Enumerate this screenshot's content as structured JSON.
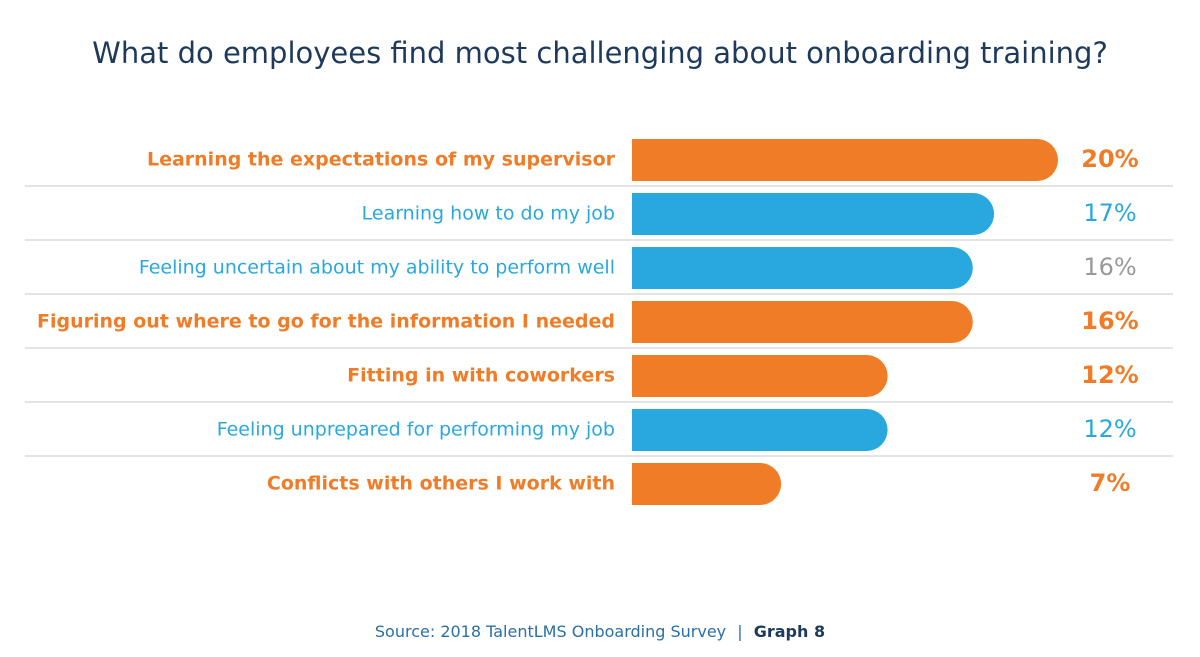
{
  "chart_data": {
    "type": "hbar",
    "title": "What do employees find most challenging about onboarding training?",
    "categories": [
      "Learning the expectations of my supervisor",
      "Learning how to do my job",
      "Feeling uncertain about my ability to perform well",
      "Figuring out where to go for the information I needed",
      "Fitting in with coworkers",
      "Feeling unprepared for performing my job",
      "Conflicts with others I work with"
    ],
    "values": [
      20,
      17,
      16,
      16,
      12,
      12,
      7
    ],
    "value_labels": [
      "20%",
      "17%",
      "16%",
      "16%",
      "12%",
      "12%",
      "7%"
    ],
    "colors": [
      "#f07c27",
      "#29a8e0",
      "#29a8e0",
      "#f07c27",
      "#f07c27",
      "#29a8e0",
      "#f07c27"
    ],
    "label_colors": [
      "#f07c27",
      "#29a8e0",
      "#29a8e0",
      "#f07c27",
      "#f07c27",
      "#29a8e0",
      "#f07c27"
    ],
    "value_label_colors": [
      "#f07c27",
      "#29a8e0",
      "#999999",
      "#f07c27",
      "#f07c27",
      "#29a8e0",
      "#f07c27"
    ],
    "bold": [
      true,
      false,
      false,
      true,
      true,
      false,
      true
    ],
    "source": "Source: 2018 TalentLMS Onboarding Survey",
    "separator": "|",
    "graph": "Graph 8"
  }
}
